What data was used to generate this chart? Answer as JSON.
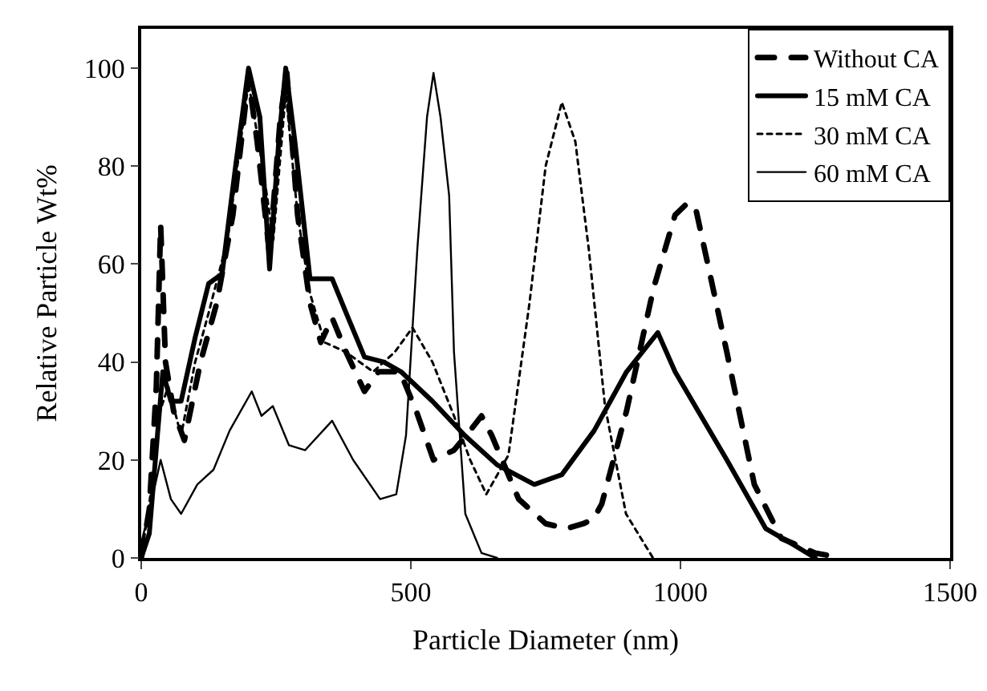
{
  "chart_data": {
    "type": "line",
    "xlabel": "Particle Diameter (nm)",
    "ylabel": "Relative Particle Wt%",
    "xlim": [
      0,
      1500
    ],
    "xticks": [
      0,
      500,
      1000,
      1500
    ],
    "ylim": [
      0,
      108
    ],
    "yticks": [
      0,
      20,
      40,
      60,
      80,
      100
    ],
    "grid": false,
    "legend": "top right",
    "marker": "none",
    "series": [
      {
        "name": "Without CA",
        "color": "#000000",
        "line_style": "dashed",
        "x": [
          0,
          15,
          28,
          36,
          45,
          60,
          80,
          110,
          140,
          170,
          199,
          215,
          238,
          258,
          270,
          290,
          313,
          333,
          354,
          380,
          414,
          440,
          480,
          510,
          542,
          580,
          610,
          631,
          650,
          700,
          750,
          789,
          820,
          839,
          854,
          900,
          950,
          990,
          1009,
          1027,
          1086,
          1137,
          1187,
          1250,
          1300
        ],
        "values": [
          0,
          10,
          35,
          68,
          40,
          30,
          24,
          40,
          52,
          70,
          98,
          85,
          62,
          90,
          99,
          70,
          52,
          44,
          49,
          42,
          34,
          38,
          38,
          30,
          20,
          22,
          26,
          29,
          25,
          12,
          7,
          6,
          7,
          8,
          11,
          30,
          55,
          70,
          72,
          72,
          42,
          15,
          4,
          1,
          0
        ]
      },
      {
        "name": "15 mM CA",
        "color": "#000000",
        "line_style": "solid",
        "x": [
          0,
          15,
          30,
          40,
          55,
          74,
          100,
          125,
          150,
          175,
          199,
          220,
          238,
          255,
          268,
          285,
          313,
          354,
          380,
          414,
          450,
          482,
          540,
          600,
          660,
          729,
          780,
          840,
          900,
          958,
          990,
          1086,
          1158,
          1205,
          1250
        ],
        "values": [
          0,
          5,
          25,
          38,
          32,
          32,
          45,
          56,
          58,
          80,
          100,
          90,
          59,
          85,
          100,
          85,
          57,
          57,
          50,
          41,
          40,
          38,
          32,
          25,
          19,
          15,
          17,
          26,
          38,
          46,
          38,
          20,
          6,
          3,
          0
        ]
      },
      {
        "name": "30 mM CA",
        "color": "#000000",
        "line_style": "dotted",
        "x": [
          0,
          20,
          35,
          50,
          74,
          100,
          125,
          160,
          199,
          225,
          245,
          268,
          290,
          313,
          340,
          380,
          430,
          470,
          503,
          540,
          580,
          610,
          640,
          681,
          720,
          750,
          780,
          805,
          830,
          860,
          899,
          949
        ],
        "values": [
          0,
          15,
          30,
          35,
          25,
          40,
          50,
          65,
          97,
          80,
          65,
          95,
          70,
          54,
          44,
          42,
          38,
          42,
          47,
          40,
          29,
          20,
          13,
          21,
          52,
          80,
          93,
          85,
          63,
          31,
          9,
          0
        ]
      },
      {
        "name": "60 mM CA",
        "color": "#000000",
        "line_style": "solid",
        "x": [
          0,
          20,
          36,
          55,
          74,
          104,
          134,
          164,
          205,
          223,
          244,
          274,
          304,
          354,
          393,
          443,
          473,
          491,
          512,
          530,
          542,
          555,
          571,
          580,
          601,
          631,
          660
        ],
        "values": [
          3,
          12,
          20,
          12,
          9,
          15,
          18,
          26,
          34,
          29,
          31,
          23,
          22,
          28,
          20,
          12,
          13,
          25,
          63,
          90,
          99,
          90,
          74,
          42,
          9,
          1,
          0
        ]
      }
    ]
  }
}
